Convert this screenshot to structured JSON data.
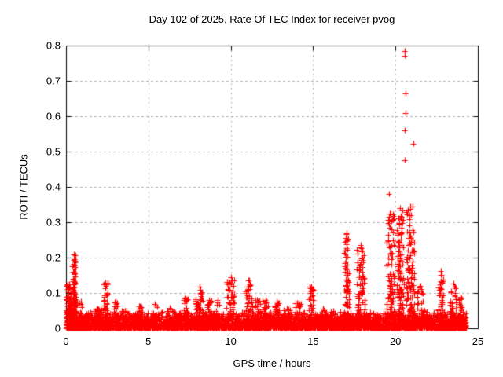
{
  "chart_data": {
    "type": "scatter",
    "title": "Day 102 of 2025, Rate Of TEC Index for receiver pvog",
    "xlabel": "GPS time / hours",
    "ylabel": "ROTI / TECUs",
    "xlim": [
      0,
      25
    ],
    "ylim": [
      0,
      0.8
    ],
    "x_ticks": [
      {
        "v": 0,
        "label": "0"
      },
      {
        "v": 5,
        "label": "5"
      },
      {
        "v": 10,
        "label": "10"
      },
      {
        "v": 15,
        "label": "15"
      },
      {
        "v": 20,
        "label": "20"
      },
      {
        "v": 25,
        "label": "25"
      }
    ],
    "y_ticks": [
      {
        "v": 0.0,
        "label": "0"
      },
      {
        "v": 0.1,
        "label": "0.1"
      },
      {
        "v": 0.2,
        "label": "0.2"
      },
      {
        "v": 0.3,
        "label": "0.3"
      },
      {
        "v": 0.4,
        "label": "0.4"
      },
      {
        "v": 0.5,
        "label": "0.5"
      },
      {
        "v": 0.6,
        "label": "0.6"
      },
      {
        "v": 0.7,
        "label": "0.7"
      },
      {
        "v": 0.8,
        "label": "0.8"
      }
    ],
    "grid": true,
    "legend": null,
    "marker": "plus",
    "marker_color": "#ff0000",
    "grid_color": "#b0b0b0",
    "axis_color": "#000000",
    "baseline": {
      "t_start": 0.0,
      "t_end": 24.3,
      "y_max": 0.048,
      "count": 4600
    },
    "spikes": [
      {
        "t": 0.18,
        "w": 0.12,
        "peak": 0.125,
        "n": 60
      },
      {
        "t": 0.35,
        "w": 0.3,
        "peak": 0.09,
        "n": 120
      },
      {
        "t": 0.5,
        "w": 0.1,
        "peak": 0.21,
        "n": 80
      },
      {
        "t": 0.9,
        "w": 0.12,
        "peak": 0.075,
        "n": 25
      },
      {
        "t": 1.9,
        "w": 0.25,
        "peak": 0.055,
        "n": 40
      },
      {
        "t": 2.4,
        "w": 0.15,
        "peak": 0.13,
        "n": 50
      },
      {
        "t": 3.0,
        "w": 0.12,
        "peak": 0.075,
        "n": 30
      },
      {
        "t": 3.6,
        "w": 0.2,
        "peak": 0.05,
        "n": 25
      },
      {
        "t": 4.5,
        "w": 0.15,
        "peak": 0.062,
        "n": 25
      },
      {
        "t": 5.4,
        "w": 0.15,
        "peak": 0.07,
        "n": 25
      },
      {
        "t": 6.3,
        "w": 0.2,
        "peak": 0.058,
        "n": 25
      },
      {
        "t": 7.25,
        "w": 0.15,
        "peak": 0.085,
        "n": 35
      },
      {
        "t": 8.1,
        "w": 0.25,
        "peak": 0.118,
        "n": 60
      },
      {
        "t": 8.7,
        "w": 0.15,
        "peak": 0.08,
        "n": 30
      },
      {
        "t": 9.2,
        "w": 0.12,
        "peak": 0.08,
        "n": 30
      },
      {
        "t": 10.0,
        "w": 0.25,
        "peak": 0.145,
        "n": 70
      },
      {
        "t": 11.1,
        "w": 0.2,
        "peak": 0.135,
        "n": 60
      },
      {
        "t": 11.6,
        "w": 0.18,
        "peak": 0.08,
        "n": 35
      },
      {
        "t": 12.1,
        "w": 0.2,
        "peak": 0.08,
        "n": 35
      },
      {
        "t": 12.8,
        "w": 0.2,
        "peak": 0.075,
        "n": 35
      },
      {
        "t": 13.4,
        "w": 0.2,
        "peak": 0.055,
        "n": 25
      },
      {
        "t": 14.1,
        "w": 0.2,
        "peak": 0.072,
        "n": 30
      },
      {
        "t": 14.9,
        "w": 0.15,
        "peak": 0.118,
        "n": 45
      },
      {
        "t": 15.6,
        "w": 0.2,
        "peak": 0.055,
        "n": 25
      },
      {
        "t": 16.2,
        "w": 0.15,
        "peak": 0.05,
        "n": 20
      },
      {
        "t": 17.05,
        "w": 0.15,
        "peak": 0.268,
        "n": 80
      },
      {
        "t": 17.9,
        "w": 0.25,
        "peak": 0.235,
        "n": 95
      },
      {
        "t": 19.7,
        "w": 0.25,
        "peak": 0.325,
        "n": 115
      },
      {
        "t": 20.3,
        "w": 0.2,
        "peak": 0.34,
        "n": 115
      },
      {
        "t": 20.9,
        "w": 0.25,
        "peak": 0.345,
        "n": 130
      },
      {
        "t": 21.5,
        "w": 0.2,
        "peak": 0.12,
        "n": 40
      },
      {
        "t": 22.75,
        "w": 0.15,
        "peak": 0.162,
        "n": 45
      },
      {
        "t": 23.5,
        "w": 0.2,
        "peak": 0.127,
        "n": 45
      },
      {
        "t": 23.95,
        "w": 0.15,
        "peak": 0.09,
        "n": 30
      }
    ],
    "outliers": [
      [
        20.56,
        0.785
      ],
      [
        20.58,
        0.772
      ],
      [
        20.6,
        0.664
      ],
      [
        20.6,
        0.608
      ],
      [
        20.55,
        0.561
      ],
      [
        21.08,
        0.523
      ],
      [
        20.55,
        0.475
      ],
      [
        19.6,
        0.381
      ]
    ]
  }
}
